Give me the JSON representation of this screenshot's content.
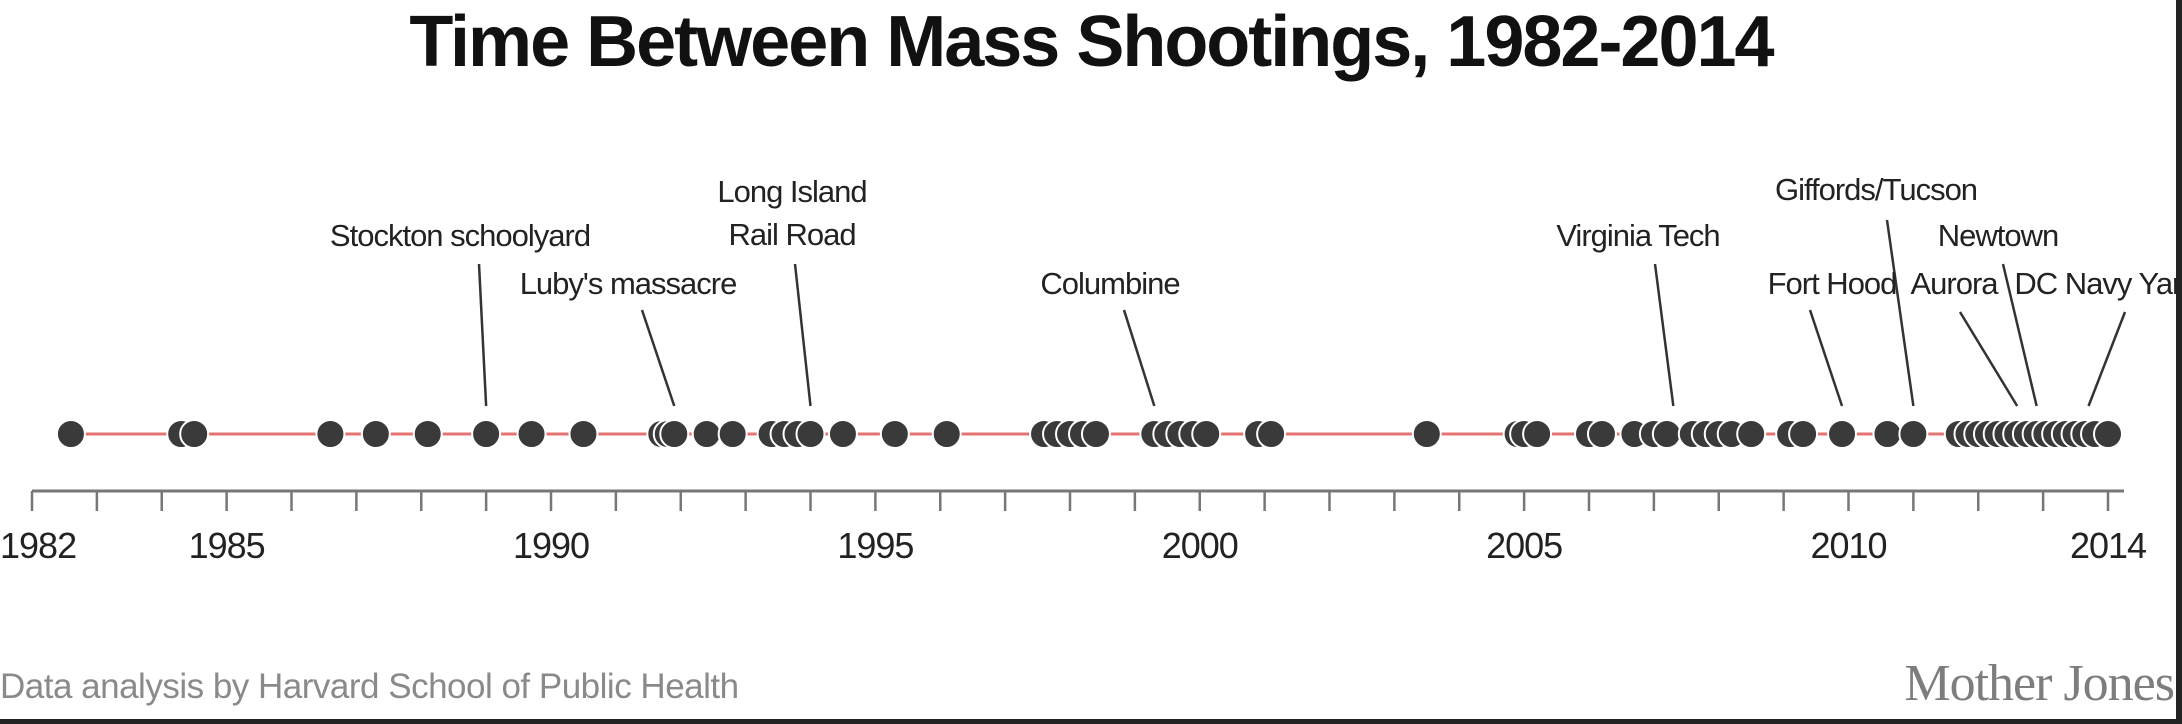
{
  "chart_data": {
    "type": "scatter",
    "title": "Time Between Mass Shootings, 1982-2014",
    "xlim": [
      1982,
      2014.3
    ],
    "ticks": [
      1982,
      1983,
      1984,
      1985,
      1986,
      1987,
      1988,
      1989,
      1990,
      1991,
      1992,
      1993,
      1994,
      1995,
      1996,
      1997,
      1998,
      1999,
      2000,
      2001,
      2002,
      2003,
      2004,
      2005,
      2006,
      2007,
      2008,
      2009,
      2010,
      2011,
      2012,
      2013,
      2014
    ],
    "tick_labels": [
      {
        "year": 1982,
        "label": "1982"
      },
      {
        "year": 1985,
        "label": "1985"
      },
      {
        "year": 1990,
        "label": "1990"
      },
      {
        "year": 1995,
        "label": "1995"
      },
      {
        "year": 2000,
        "label": "2000"
      },
      {
        "year": 2005,
        "label": "2005"
      },
      {
        "year": 2010,
        "label": "2010"
      },
      {
        "year": 2014,
        "label": "2014"
      }
    ],
    "events": [
      1982.6,
      1984.3,
      1984.5,
      1986.6,
      1987.3,
      1988.1,
      1989.0,
      1989.7,
      1990.5,
      1991.7,
      1991.8,
      1991.9,
      1992.4,
      1992.8,
      1993.4,
      1993.6,
      1993.8,
      1994.0,
      1994.5,
      1995.3,
      1996.1,
      1997.6,
      1997.8,
      1998.0,
      1998.2,
      1998.4,
      1999.3,
      1999.5,
      1999.7,
      1999.9,
      2000.1,
      2000.9,
      2001.1,
      2003.5,
      2004.9,
      2005.0,
      2005.2,
      2006.0,
      2006.2,
      2006.7,
      2007.0,
      2007.2,
      2007.6,
      2007.8,
      2008.0,
      2008.2,
      2008.5,
      2009.1,
      2009.3,
      2009.9,
      2010.6,
      2011.0,
      2011.7,
      2011.85,
      2012.0,
      2012.15,
      2012.3,
      2012.45,
      2012.6,
      2012.75,
      2012.9,
      2013.05,
      2013.2,
      2013.35,
      2013.5,
      2013.65,
      2013.8,
      2014.0
    ],
    "annotations": [
      {
        "label": "Stockton schoolyard",
        "year": 1989.0
      },
      {
        "label": "Luby's massacre",
        "year": 1991.9
      },
      {
        "label": "Long Island\nRail Road",
        "year": 1994.0
      },
      {
        "label": "Columbine",
        "year": 1999.3
      },
      {
        "label": "Virginia Tech",
        "year": 2007.3
      },
      {
        "label": "Fort Hood",
        "year": 2009.9
      },
      {
        "label": "Giffords/Tucson",
        "year": 2011.0
      },
      {
        "label": "Aurora",
        "year": 2012.6
      },
      {
        "label": "Newtown",
        "year": 2012.9
      },
      {
        "label": "DC Navy Yard",
        "year": 2013.7
      }
    ],
    "grid": false,
    "legend": "none"
  },
  "footer": {
    "credit": "Data analysis by Harvard School of Public Health",
    "brand": "Mother Jones"
  },
  "colors": {
    "point": "#3a3a3a",
    "timeline": "#e57373",
    "axis": "#777777"
  }
}
